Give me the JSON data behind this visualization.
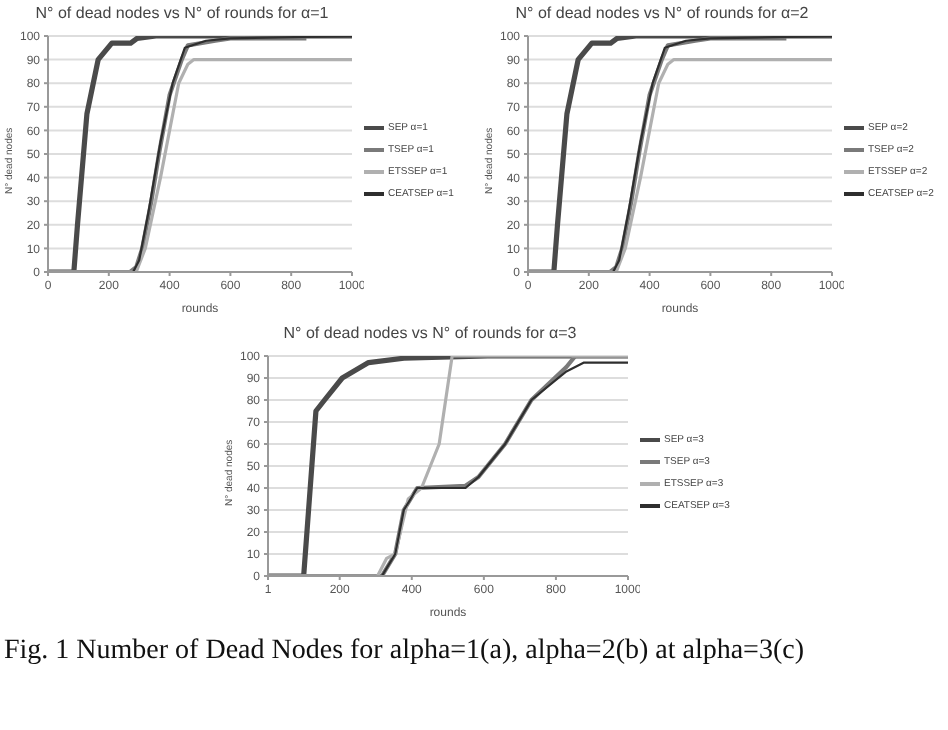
{
  "chart_data": [
    {
      "type": "line",
      "title": "N° of dead nodes vs N° of rounds for α=1",
      "xlabel": "rounds",
      "ylabel": "N° dead nodes",
      "xlim": [
        0,
        1000
      ],
      "xticks": [
        0,
        200,
        400,
        600,
        800,
        1000
      ],
      "ylim": [
        0,
        100
      ],
      "yticks": [
        0,
        10,
        20,
        30,
        40,
        50,
        60,
        70,
        80,
        90,
        100
      ],
      "grid": "y",
      "legend": "right",
      "line_style": "solid",
      "series": [
        {
          "name": "SEP α=1",
          "color": "#4a4a4a",
          "x": [
            0,
            85,
            97,
            128,
            165,
            210,
            272,
            293,
            355,
            1000
          ],
          "values": [
            0,
            0,
            20,
            67,
            90,
            97,
            97,
            99,
            100,
            100
          ]
        },
        {
          "name": "TSEP α=1",
          "color": "#7a7a7a",
          "x": [
            0,
            270,
            290,
            310,
            340,
            365,
            400,
            440,
            460,
            550,
            600,
            850
          ],
          "values": [
            0,
            0,
            2,
            10,
            30,
            50,
            75,
            90,
            96,
            98,
            99,
            99
          ]
        },
        {
          "name": "ETSSEP α=1",
          "color": "#b0b0b0",
          "x": [
            0,
            290,
            320,
            370,
            400,
            430,
            460,
            480,
            1000
          ],
          "values": [
            0,
            0,
            10,
            40,
            60,
            80,
            88,
            90,
            90
          ]
        },
        {
          "name": "CEATSEP α=1",
          "color": "#2e2e2e",
          "x": [
            0,
            280,
            300,
            330,
            370,
            410,
            450,
            520,
            600,
            1000
          ],
          "values": [
            0,
            0,
            5,
            25,
            55,
            80,
            95,
            98,
            99,
            100
          ]
        }
      ]
    },
    {
      "type": "line",
      "title": "N° of dead nodes vs N° of rounds for α=2",
      "xlabel": "rounds",
      "ylabel": "N° dead nodes",
      "xlim": [
        0,
        1000
      ],
      "xticks": [
        0,
        200,
        400,
        600,
        800,
        1000
      ],
      "ylim": [
        0,
        100
      ],
      "yticks": [
        0,
        10,
        20,
        30,
        40,
        50,
        60,
        70,
        80,
        90,
        100
      ],
      "grid": "y",
      "legend": "right",
      "line_style": "solid",
      "series": [
        {
          "name": "SEP α=2",
          "color": "#4a4a4a",
          "x": [
            0,
            85,
            97,
            128,
            165,
            210,
            272,
            293,
            355,
            1000
          ],
          "values": [
            0,
            0,
            20,
            67,
            90,
            97,
            97,
            99,
            100,
            100
          ]
        },
        {
          "name": "TSEP α=2",
          "color": "#7a7a7a",
          "x": [
            0,
            270,
            290,
            310,
            340,
            365,
            400,
            440,
            460,
            550,
            600,
            850
          ],
          "values": [
            0,
            0,
            2,
            10,
            30,
            50,
            75,
            90,
            96,
            98,
            99,
            99
          ]
        },
        {
          "name": "ETSSEP α=2",
          "color": "#b0b0b0",
          "x": [
            0,
            290,
            320,
            370,
            400,
            430,
            460,
            480,
            1000
          ],
          "values": [
            0,
            0,
            10,
            40,
            60,
            80,
            88,
            90,
            90
          ]
        },
        {
          "name": "CEATSEP α=2",
          "color": "#2e2e2e",
          "x": [
            0,
            280,
            300,
            330,
            370,
            410,
            450,
            520,
            600,
            1000
          ],
          "values": [
            0,
            0,
            5,
            25,
            55,
            80,
            95,
            98,
            99,
            100
          ]
        }
      ]
    },
    {
      "type": "line",
      "title": "N° of dead nodes vs N° of rounds for α=3",
      "xlabel": "rounds",
      "ylabel": "N° dead nodes",
      "xlim": [
        1,
        1000
      ],
      "xticks": [
        1,
        200,
        400,
        600,
        800,
        1000
      ],
      "ylim": [
        0,
        100
      ],
      "yticks": [
        0,
        10,
        20,
        30,
        40,
        50,
        60,
        70,
        80,
        90,
        100
      ],
      "grid": "y",
      "legend": "right",
      "line_style": "solid",
      "annotations": [
        "Fig. 1 Number of Dead Nodes for alpha=1(a), alpha=2(b) at alpha=3(c)"
      ],
      "series": [
        {
          "name": "SEP α=3",
          "color": "#4a4a4a",
          "x": [
            1,
            100,
            134,
            158,
            207,
            280,
            378,
            610,
            1000
          ],
          "values": [
            0,
            0,
            75,
            80,
            90,
            97,
            99,
            100,
            100
          ]
        },
        {
          "name": "TSEP α=3",
          "color": "#7a7a7a",
          "x": [
            1,
            317,
            354,
            378,
            415,
            549,
            585,
            659,
            732,
            829,
            854,
            1000
          ],
          "values": [
            0,
            0,
            10,
            30,
            40,
            41,
            45,
            60,
            80,
            95,
            100,
            100
          ]
        },
        {
          "name": "ETSSEP α=3",
          "color": "#b0b0b0",
          "x": [
            1,
            305,
            330,
            354,
            390,
            427,
            476,
            512,
            1000
          ],
          "values": [
            0,
            0,
            8,
            10,
            35,
            40,
            60,
            100,
            100
          ]
        },
        {
          "name": "CEATSEP α=3",
          "color": "#2e2e2e",
          "x": [
            1,
            317,
            354,
            378,
            415,
            549,
            585,
            659,
            732,
            829,
            878,
            1000
          ],
          "values": [
            0,
            0,
            10,
            30,
            40,
            40,
            45,
            60,
            80,
            93,
            97,
            97
          ]
        }
      ]
    }
  ]
}
